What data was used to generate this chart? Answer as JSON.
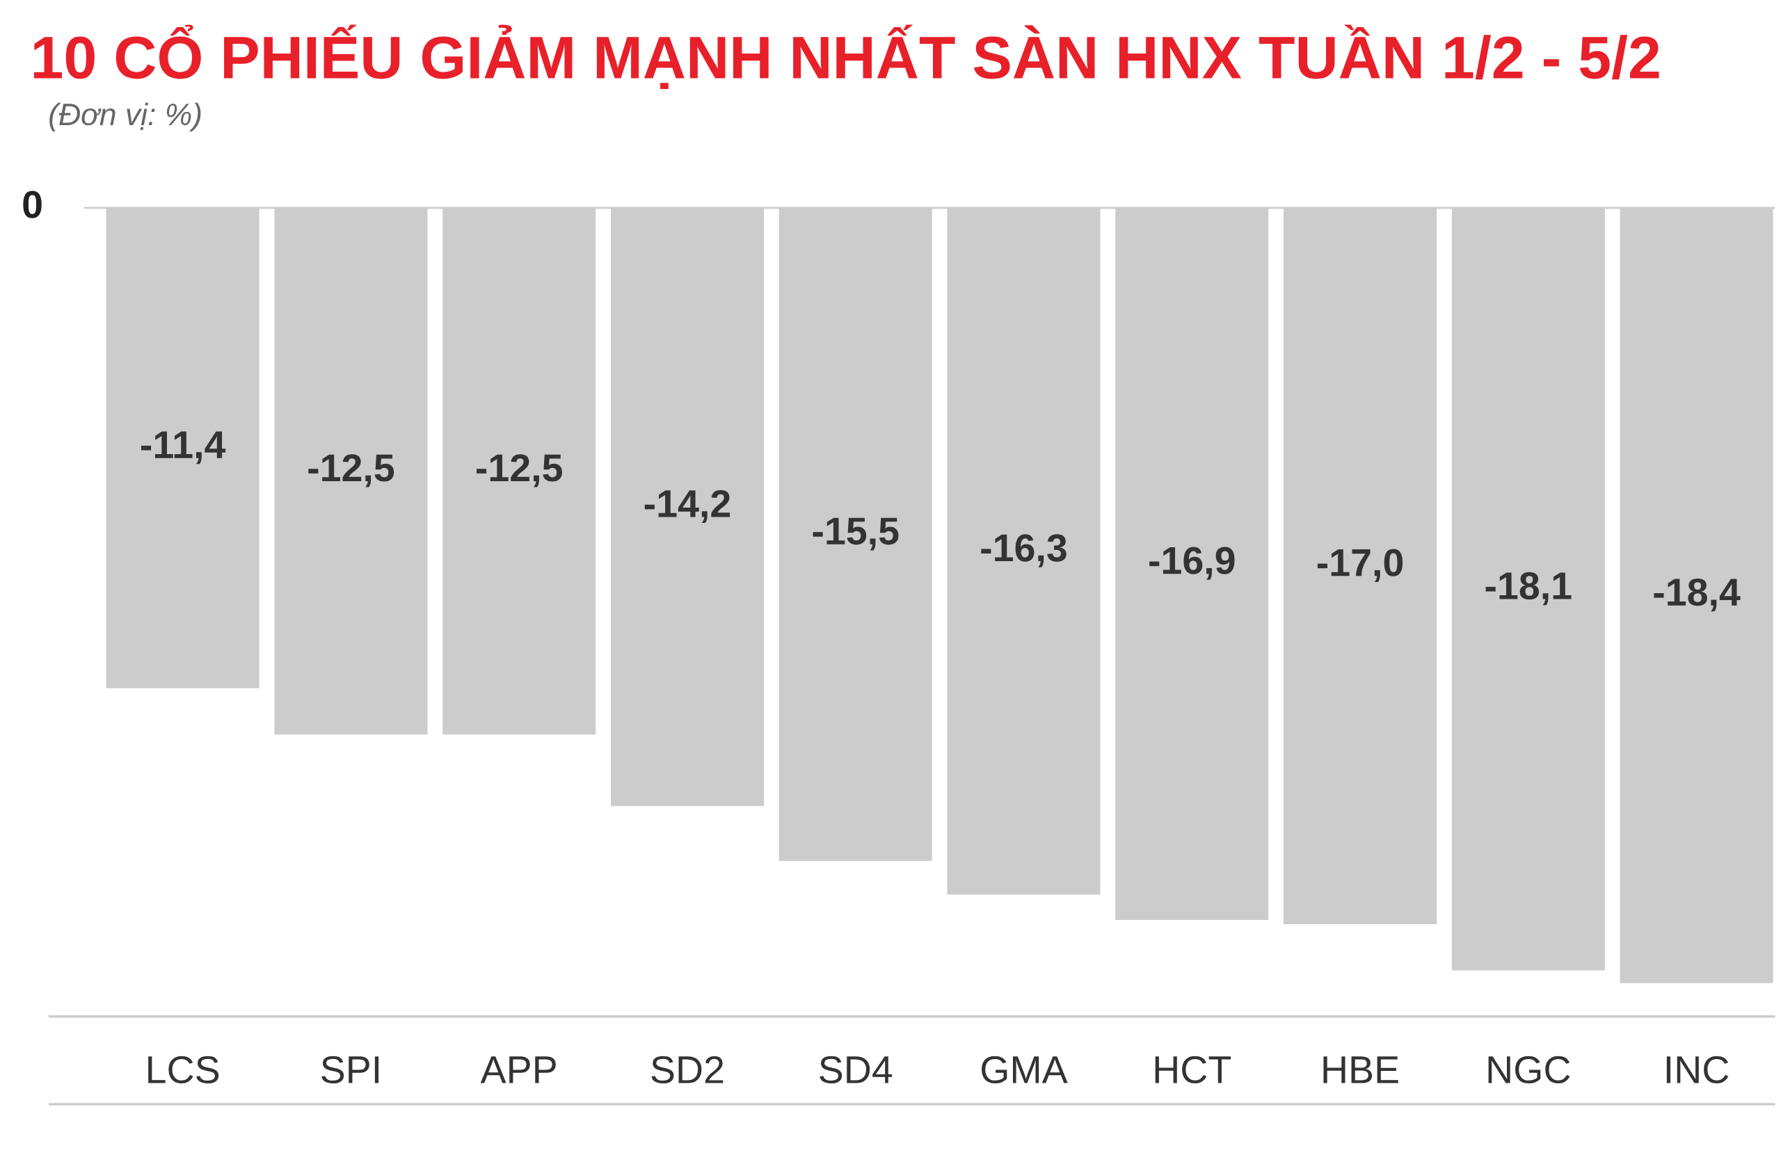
{
  "chart_data": {
    "type": "bar",
    "title": "10 CỔ PHIẾU GIẢM MẠNH NHẤT SÀN HNX TUẦN 1/2 - 5/2",
    "subtitle": "(Đơn vị: %)",
    "categories": [
      "LCS",
      "SPI",
      "APP",
      "SD2",
      "SD4",
      "GMA",
      "HCT",
      "HBE",
      "NGC",
      "INC"
    ],
    "values": [
      -11.4,
      -12.5,
      -12.5,
      -14.2,
      -15.5,
      -16.3,
      -16.9,
      -17.0,
      -18.1,
      -18.4
    ],
    "value_labels": [
      "-11,4",
      "-12,5",
      "-12,5",
      "-14,2",
      "-15,5",
      "-16,3",
      "-16,9",
      "-17,0",
      "-18,1",
      "-18,4"
    ],
    "color": "#cccccc",
    "annotations": [
      "0"
    ],
    "grid": false,
    "legend": false
  }
}
